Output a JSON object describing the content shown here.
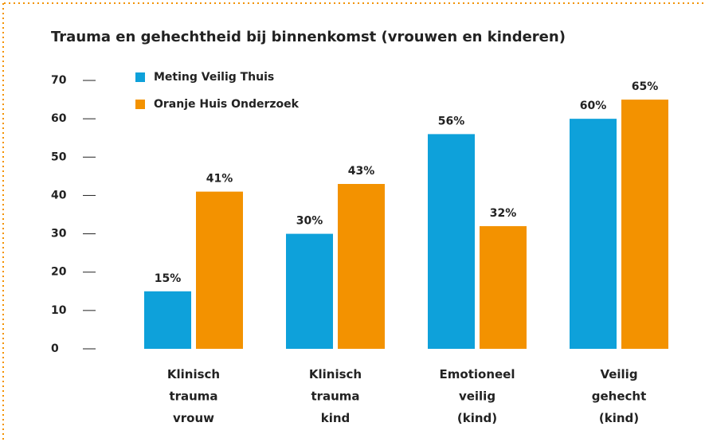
{
  "chart_data": {
    "type": "bar",
    "title": "Trauma en gehechtheid bij binnenkomst (vrouwen en kinderen)",
    "categories": [
      "Klinisch trauma vrouw",
      "Klinisch trauma kind",
      "Emotioneel veilig (kind)",
      "Veilig gehecht (kind)"
    ],
    "series": [
      {
        "name": "Meting Veilig Thuis",
        "color": "#0ea1da",
        "values": [
          15,
          30,
          56,
          60
        ],
        "value_labels": [
          "15%",
          "30%",
          "56%",
          "60%"
        ]
      },
      {
        "name": "Oranje Huis Onderzoek",
        "color": "#f39200",
        "values": [
          41,
          43,
          32,
          65
        ],
        "value_labels": [
          "41%",
          "43%",
          "32%",
          "65%"
        ]
      }
    ],
    "ylim": [
      0,
      70
    ],
    "yticks": [
      0,
      10,
      20,
      30,
      40,
      50,
      60,
      70
    ],
    "legend": "upper left"
  }
}
